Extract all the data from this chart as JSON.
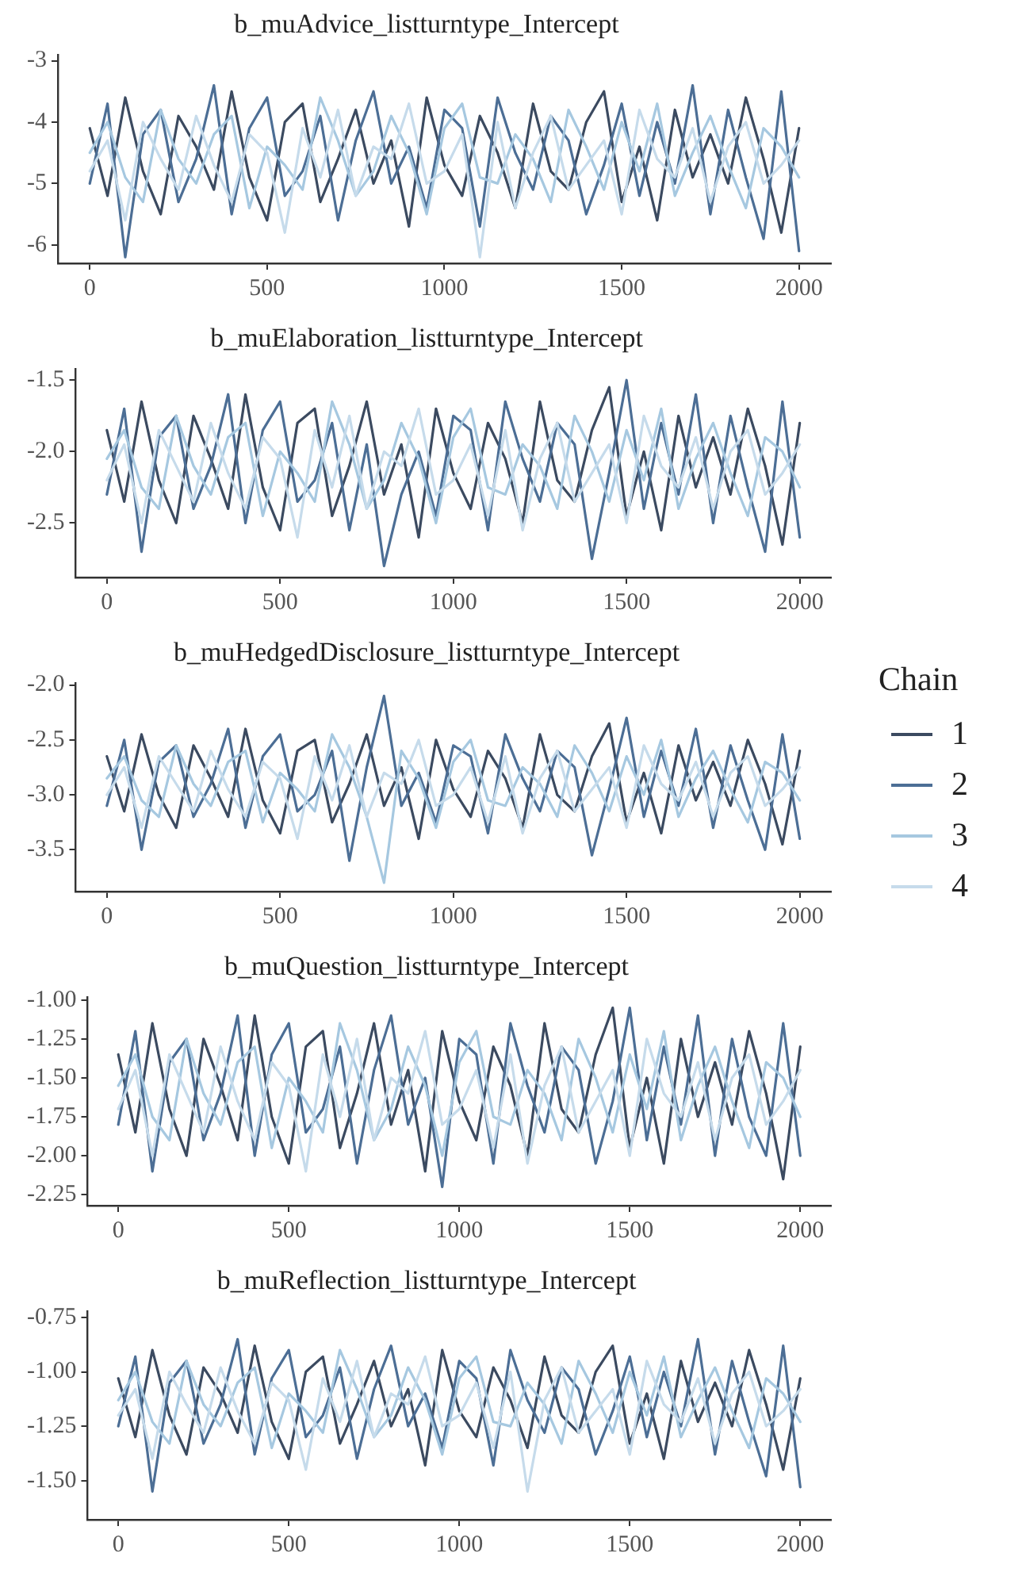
{
  "chart_data": [
    {
      "type": "line",
      "title": "b_muAdvice_listturntype_Intercept",
      "marker": "none",
      "line_style": "solid",
      "x": [
        0,
        50,
        100,
        150,
        200,
        250,
        300,
        350,
        400,
        450,
        500,
        550,
        600,
        650,
        700,
        750,
        800,
        850,
        900,
        950,
        1000,
        1050,
        1100,
        1150,
        1200,
        1250,
        1300,
        1350,
        1400,
        1450,
        1500,
        1550,
        1600,
        1650,
        1700,
        1750,
        1800,
        1850,
        1900,
        1950,
        2000
      ],
      "xlim": [
        -90,
        2090
      ],
      "xticks": [
        0,
        500,
        1000,
        1500,
        2000
      ],
      "ylim": [
        -6.3,
        -2.9
      ],
      "yticks": [
        -6,
        -5,
        -4,
        -3
      ],
      "series": [
        {
          "color": "#3b4a60",
          "values": [
            -4.1,
            -5.2,
            -3.6,
            -4.8,
            -5.5,
            -3.9,
            -4.4,
            -5.1,
            -3.5,
            -4.9,
            -5.6,
            -4.0,
            -3.7,
            -5.3,
            -4.6,
            -3.8,
            -5.0,
            -4.3,
            -5.7,
            -3.6,
            -4.7,
            -5.2,
            -3.9,
            -4.5,
            -5.4,
            -3.7,
            -4.8,
            -5.1,
            -4.0,
            -3.5,
            -5.3,
            -4.4,
            -5.6,
            -3.8,
            -4.9,
            -4.2,
            -5.0,
            -3.6,
            -4.6,
            -5.8,
            -4.1
          ]
        },
        {
          "color": "#4c6e95",
          "values": [
            -5.0,
            -3.7,
            -6.2,
            -4.2,
            -3.8,
            -5.3,
            -4.6,
            -3.4,
            -5.5,
            -4.1,
            -3.6,
            -5.2,
            -4.8,
            -3.9,
            -5.6,
            -4.3,
            -3.5,
            -5.0,
            -4.4,
            -5.4,
            -3.8,
            -4.1,
            -5.7,
            -3.6,
            -4.5,
            -5.1,
            -3.9,
            -4.3,
            -5.5,
            -4.7,
            -3.7,
            -5.2,
            -4.0,
            -5.0,
            -3.4,
            -5.5,
            -3.8,
            -4.9,
            -5.9,
            -3.5,
            -6.1
          ]
        },
        {
          "color": "#a6c8e0",
          "values": [
            -4.5,
            -4.0,
            -4.9,
            -5.3,
            -3.8,
            -4.6,
            -5.0,
            -4.2,
            -3.9,
            -5.4,
            -4.4,
            -4.7,
            -5.1,
            -3.6,
            -4.3,
            -5.2,
            -4.8,
            -3.9,
            -4.5,
            -5.5,
            -4.1,
            -3.7,
            -4.9,
            -5.0,
            -4.2,
            -4.6,
            -5.3,
            -3.8,
            -4.4,
            -5.1,
            -4.0,
            -4.8,
            -3.7,
            -5.2,
            -4.5,
            -3.9,
            -4.7,
            -5.4,
            -4.1,
            -4.4,
            -4.9
          ]
        },
        {
          "color": "#c6dbeb",
          "values": [
            -4.8,
            -4.3,
            -5.6,
            -4.0,
            -4.6,
            -5.1,
            -3.9,
            -4.7,
            -5.3,
            -4.2,
            -4.5,
            -5.8,
            -4.1,
            -4.9,
            -3.8,
            -5.2,
            -4.4,
            -4.6,
            -3.7,
            -5.0,
            -4.8,
            -4.2,
            -6.2,
            -4.0,
            -5.4,
            -4.5,
            -3.9,
            -5.1,
            -4.7,
            -4.3,
            -5.5,
            -3.8,
            -4.6,
            -4.9,
            -4.1,
            -5.3,
            -4.4,
            -4.0,
            -5.0,
            -4.7,
            -4.3
          ]
        }
      ]
    },
    {
      "type": "line",
      "title": "b_muElaboration_listturntype_Intercept",
      "marker": "none",
      "line_style": "solid",
      "x": [
        0,
        50,
        100,
        150,
        200,
        250,
        300,
        350,
        400,
        450,
        500,
        550,
        600,
        650,
        700,
        750,
        800,
        850,
        900,
        950,
        1000,
        1050,
        1100,
        1150,
        1200,
        1250,
        1300,
        1350,
        1400,
        1450,
        1500,
        1550,
        1600,
        1650,
        1700,
        1750,
        1800,
        1850,
        1900,
        1950,
        2000
      ],
      "xlim": [
        -90,
        2090
      ],
      "xticks": [
        0,
        500,
        1000,
        1500,
        2000
      ],
      "ylim": [
        -2.88,
        -1.42
      ],
      "yticks": [
        {
          "value": -2.5,
          "label": "-2.5"
        },
        {
          "value": -2.0,
          "label": "-2.0"
        },
        {
          "value": -1.5,
          "label": "-1.5"
        }
      ],
      "series": [
        {
          "color": "#3b4a60",
          "values": [
            -1.85,
            -2.35,
            -1.65,
            -2.2,
            -2.5,
            -1.75,
            -2.05,
            -2.4,
            -1.6,
            -2.25,
            -2.55,
            -1.8,
            -1.7,
            -2.45,
            -2.1,
            -1.65,
            -2.3,
            -1.95,
            -2.6,
            -1.7,
            -2.15,
            -2.4,
            -1.8,
            -2.05,
            -2.5,
            -1.65,
            -2.2,
            -2.35,
            -1.85,
            -1.55,
            -2.45,
            -2.0,
            -2.55,
            -1.75,
            -2.25,
            -1.9,
            -2.3,
            -1.7,
            -2.1,
            -2.65,
            -1.8
          ]
        },
        {
          "color": "#4c6e95",
          "values": [
            -2.3,
            -1.7,
            -2.7,
            -1.9,
            -1.75,
            -2.4,
            -2.1,
            -1.6,
            -2.5,
            -1.85,
            -1.65,
            -2.35,
            -2.2,
            -1.8,
            -2.55,
            -1.95,
            -2.8,
            -2.3,
            -2.0,
            -2.45,
            -1.75,
            -1.85,
            -2.55,
            -1.65,
            -2.05,
            -2.35,
            -1.8,
            -1.95,
            -2.75,
            -2.15,
            -1.5,
            -2.4,
            -1.8,
            -2.3,
            -1.6,
            -2.5,
            -1.75,
            -2.25,
            -2.7,
            -1.65,
            -2.6
          ]
        },
        {
          "color": "#a6c8e0",
          "values": [
            -2.05,
            -1.85,
            -2.25,
            -2.4,
            -1.75,
            -2.1,
            -2.3,
            -1.9,
            -1.8,
            -2.45,
            -2.0,
            -2.15,
            -2.35,
            -1.65,
            -1.95,
            -2.4,
            -2.2,
            -1.8,
            -2.05,
            -2.5,
            -1.9,
            -1.7,
            -2.25,
            -2.3,
            -1.95,
            -2.1,
            -2.4,
            -1.75,
            -2.0,
            -2.35,
            -1.85,
            -2.2,
            -1.7,
            -2.4,
            -2.05,
            -1.8,
            -2.15,
            -2.45,
            -1.9,
            -2.0,
            -2.25
          ]
        },
        {
          "color": "#c6dbeb",
          "values": [
            -2.2,
            -1.95,
            -2.5,
            -1.85,
            -2.1,
            -2.35,
            -1.8,
            -2.15,
            -2.4,
            -1.9,
            -2.05,
            -2.6,
            -1.85,
            -2.25,
            -1.75,
            -2.4,
            -2.0,
            -2.1,
            -1.7,
            -2.3,
            -2.2,
            -1.95,
            -2.45,
            -1.85,
            -2.55,
            -2.05,
            -1.8,
            -2.35,
            -2.15,
            -1.95,
            -2.5,
            -1.75,
            -2.1,
            -2.25,
            -1.9,
            -2.4,
            -2.0,
            -1.85,
            -2.3,
            -2.15,
            -1.95
          ]
        }
      ]
    },
    {
      "type": "line",
      "title": "b_muHedgedDisclosure_listturntype_Intercept",
      "marker": "none",
      "line_style": "solid",
      "legend": "right",
      "legend_title": "Chain",
      "x": [
        0,
        50,
        100,
        150,
        200,
        250,
        300,
        350,
        400,
        450,
        500,
        550,
        600,
        650,
        700,
        750,
        800,
        850,
        900,
        950,
        1000,
        1050,
        1100,
        1150,
        1200,
        1250,
        1300,
        1350,
        1400,
        1450,
        1500,
        1550,
        1600,
        1650,
        1700,
        1750,
        1800,
        1850,
        1900,
        1950,
        2000
      ],
      "xlim": [
        -90,
        2090
      ],
      "xticks": [
        0,
        500,
        1000,
        1500,
        2000
      ],
      "ylim": [
        -3.88,
        -1.98
      ],
      "yticks": [
        {
          "value": -3.5,
          "label": "-3.5"
        },
        {
          "value": -3.0,
          "label": "-3.0"
        },
        {
          "value": -2.5,
          "label": "-2.5"
        },
        {
          "value": -2.0,
          "label": "-2.0"
        }
      ],
      "series": [
        {
          "name": "1",
          "color": "#3b4a60",
          "values": [
            -2.65,
            -3.15,
            -2.45,
            -3.0,
            -3.3,
            -2.55,
            -2.85,
            -3.2,
            -2.4,
            -3.05,
            -3.35,
            -2.6,
            -2.5,
            -3.25,
            -2.9,
            -2.45,
            -3.1,
            -2.75,
            -3.4,
            -2.5,
            -2.95,
            -3.2,
            -2.6,
            -2.85,
            -3.3,
            -2.45,
            -3.0,
            -3.15,
            -2.65,
            -2.35,
            -3.25,
            -2.8,
            -3.35,
            -2.55,
            -3.05,
            -2.7,
            -3.1,
            -2.5,
            -2.9,
            -3.45,
            -2.6
          ]
        },
        {
          "name": "2",
          "color": "#4c6e95",
          "values": [
            -3.1,
            -2.5,
            -3.5,
            -2.7,
            -2.55,
            -3.2,
            -2.9,
            -2.4,
            -3.3,
            -2.65,
            -2.45,
            -3.15,
            -3.0,
            -2.6,
            -3.6,
            -2.75,
            -2.1,
            -3.1,
            -2.8,
            -3.25,
            -2.55,
            -2.65,
            -3.35,
            -2.45,
            -2.85,
            -3.15,
            -2.6,
            -2.75,
            -3.55,
            -2.95,
            -2.3,
            -3.2,
            -2.6,
            -3.1,
            -2.4,
            -3.3,
            -2.55,
            -3.05,
            -3.5,
            -2.45,
            -3.4
          ]
        },
        {
          "name": "3",
          "color": "#a6c8e0",
          "values": [
            -2.85,
            -2.65,
            -3.05,
            -3.2,
            -2.55,
            -2.9,
            -3.1,
            -2.7,
            -2.6,
            -3.25,
            -2.8,
            -2.95,
            -3.15,
            -2.45,
            -2.75,
            -3.2,
            -3.8,
            -2.6,
            -2.85,
            -3.3,
            -2.7,
            -2.5,
            -3.05,
            -3.1,
            -2.75,
            -2.9,
            -3.2,
            -2.55,
            -2.8,
            -3.15,
            -2.65,
            -3.0,
            -2.5,
            -3.2,
            -2.85,
            -2.6,
            -2.95,
            -3.25,
            -2.7,
            -2.8,
            -3.05
          ]
        },
        {
          "name": "4",
          "color": "#c6dbeb",
          "values": [
            -3.0,
            -2.75,
            -3.3,
            -2.65,
            -2.9,
            -3.15,
            -2.6,
            -2.95,
            -3.2,
            -2.7,
            -2.85,
            -3.4,
            -2.65,
            -3.05,
            -2.55,
            -3.2,
            -2.8,
            -2.9,
            -2.5,
            -3.1,
            -3.0,
            -2.75,
            -3.25,
            -2.65,
            -3.35,
            -2.85,
            -2.6,
            -3.15,
            -2.95,
            -2.75,
            -3.3,
            -2.55,
            -2.9,
            -3.05,
            -2.7,
            -3.2,
            -2.8,
            -2.65,
            -3.1,
            -2.95,
            -2.75
          ]
        }
      ]
    },
    {
      "type": "line",
      "title": "b_muQuestion_listturntype_Intercept",
      "marker": "none",
      "line_style": "solid",
      "x": [
        0,
        50,
        100,
        150,
        200,
        250,
        300,
        350,
        400,
        450,
        500,
        550,
        600,
        650,
        700,
        750,
        800,
        850,
        900,
        950,
        1000,
        1050,
        1100,
        1150,
        1200,
        1250,
        1300,
        1350,
        1400,
        1450,
        1500,
        1550,
        1600,
        1650,
        1700,
        1750,
        1800,
        1850,
        1900,
        1950,
        2000
      ],
      "xlim": [
        -90,
        2090
      ],
      "xticks": [
        0,
        500,
        1000,
        1500,
        2000
      ],
      "ylim": [
        -2.32,
        -0.98
      ],
      "yticks": [
        -2.25,
        {
          "value": -2.0,
          "label": "-2.00"
        },
        -1.75,
        {
          "value": -1.5,
          "label": "-1.50"
        },
        -1.25,
        {
          "value": -1.0,
          "label": "-1.00"
        }
      ],
      "series": [
        {
          "color": "#3b4a60",
          "values": [
            -1.35,
            -1.85,
            -1.15,
            -1.7,
            -2.0,
            -1.25,
            -1.55,
            -1.9,
            -1.1,
            -1.75,
            -2.05,
            -1.3,
            -1.2,
            -1.95,
            -1.6,
            -1.15,
            -1.8,
            -1.45,
            -2.1,
            -1.2,
            -1.65,
            -1.9,
            -1.3,
            -1.55,
            -2.0,
            -1.15,
            -1.7,
            -1.85,
            -1.35,
            -1.05,
            -1.95,
            -1.5,
            -2.05,
            -1.25,
            -1.75,
            -1.4,
            -1.8,
            -1.2,
            -1.6,
            -2.15,
            -1.3
          ]
        },
        {
          "color": "#4c6e95",
          "values": [
            -1.8,
            -1.2,
            -2.1,
            -1.4,
            -1.25,
            -1.9,
            -1.6,
            -1.1,
            -2.0,
            -1.35,
            -1.15,
            -1.85,
            -1.7,
            -1.3,
            -2.05,
            -1.45,
            -1.1,
            -1.8,
            -1.5,
            -2.2,
            -1.25,
            -1.35,
            -2.05,
            -1.15,
            -1.55,
            -1.85,
            -1.3,
            -1.45,
            -2.05,
            -1.65,
            -1.05,
            -1.9,
            -1.3,
            -1.8,
            -1.1,
            -2.0,
            -1.25,
            -1.75,
            -2.0,
            -1.15,
            -2.0
          ]
        },
        {
          "color": "#a6c8e0",
          "values": [
            -1.55,
            -1.35,
            -1.75,
            -1.9,
            -1.25,
            -1.6,
            -1.8,
            -1.4,
            -1.3,
            -1.95,
            -1.5,
            -1.65,
            -1.85,
            -1.15,
            -1.45,
            -1.9,
            -1.7,
            -1.3,
            -1.55,
            -2.0,
            -1.4,
            -1.2,
            -1.75,
            -1.8,
            -1.45,
            -1.6,
            -1.9,
            -1.25,
            -1.5,
            -1.85,
            -1.35,
            -1.7,
            -1.2,
            -1.9,
            -1.55,
            -1.3,
            -1.65,
            -1.95,
            -1.4,
            -1.5,
            -1.75
          ]
        },
        {
          "color": "#c6dbeb",
          "values": [
            -1.7,
            -1.45,
            -2.0,
            -1.35,
            -1.6,
            -1.85,
            -1.3,
            -1.65,
            -1.9,
            -1.4,
            -1.55,
            -2.1,
            -1.35,
            -1.75,
            -1.25,
            -1.9,
            -1.5,
            -1.6,
            -1.2,
            -1.8,
            -1.7,
            -1.45,
            -1.95,
            -1.35,
            -2.05,
            -1.55,
            -1.3,
            -1.85,
            -1.65,
            -1.45,
            -2.0,
            -1.25,
            -1.6,
            -1.75,
            -1.4,
            -1.9,
            -1.5,
            -1.35,
            -1.8,
            -1.65,
            -1.45
          ]
        }
      ]
    },
    {
      "type": "line",
      "title": "b_muReflection_listturntype_Intercept",
      "marker": "none",
      "line_style": "solid",
      "x": [
        0,
        50,
        100,
        150,
        200,
        250,
        300,
        350,
        400,
        450,
        500,
        550,
        600,
        650,
        700,
        750,
        800,
        850,
        900,
        950,
        1000,
        1050,
        1100,
        1150,
        1200,
        1250,
        1300,
        1350,
        1400,
        1450,
        1500,
        1550,
        1600,
        1650,
        1700,
        1750,
        1800,
        1850,
        1900,
        1950,
        2000
      ],
      "xlim": [
        -90,
        2090
      ],
      "xticks": [
        0,
        500,
        1000,
        1500,
        2000
      ],
      "ylim": [
        -1.68,
        -0.72
      ],
      "yticks": [
        {
          "value": -1.5,
          "label": "-1.50"
        },
        -1.25,
        {
          "value": -1.0,
          "label": "-1.00"
        },
        -0.75
      ],
      "series": [
        {
          "color": "#3b4a60",
          "values": [
            -1.03,
            -1.3,
            -0.9,
            -1.2,
            -1.38,
            -0.98,
            -1.1,
            -1.28,
            -0.88,
            -1.23,
            -1.4,
            -1.0,
            -0.93,
            -1.33,
            -1.15,
            -0.95,
            -1.25,
            -1.08,
            -1.43,
            -0.9,
            -1.18,
            -1.3,
            -0.98,
            -1.13,
            -1.35,
            -0.93,
            -1.2,
            -1.28,
            -1.0,
            -0.88,
            -1.33,
            -1.1,
            -1.4,
            -0.95,
            -1.23,
            -1.05,
            -1.25,
            -0.9,
            -1.15,
            -1.45,
            -1.03
          ]
        },
        {
          "color": "#4c6e95",
          "values": [
            -1.25,
            -0.93,
            -1.55,
            -1.05,
            -0.95,
            -1.33,
            -1.15,
            -0.85,
            -1.38,
            -1.03,
            -0.9,
            -1.3,
            -1.2,
            -0.98,
            -1.4,
            -1.08,
            -0.88,
            -1.25,
            -1.1,
            -1.35,
            -0.95,
            -1.03,
            -1.43,
            -0.9,
            -1.13,
            -1.28,
            -0.98,
            -1.08,
            -1.38,
            -1.18,
            -0.93,
            -1.3,
            -1.0,
            -1.25,
            -0.85,
            -1.38,
            -0.95,
            -1.23,
            -1.48,
            -0.88,
            -1.53
          ]
        },
        {
          "color": "#a6c8e0",
          "values": [
            -1.13,
            -1.0,
            -1.23,
            -1.33,
            -0.95,
            -1.15,
            -1.25,
            -1.05,
            -0.98,
            -1.35,
            -1.1,
            -1.18,
            -1.28,
            -0.9,
            -1.08,
            -1.3,
            -1.2,
            -0.98,
            -1.13,
            -1.38,
            -1.03,
            -0.93,
            -1.23,
            -1.25,
            -1.05,
            -1.15,
            -1.33,
            -0.95,
            -1.1,
            -1.28,
            -1.0,
            -1.2,
            -0.93,
            -1.3,
            -1.13,
            -0.98,
            -1.18,
            -1.35,
            -1.03,
            -1.1,
            -1.23
          ]
        },
        {
          "color": "#c6dbeb",
          "values": [
            -1.2,
            -1.08,
            -1.4,
            -1.0,
            -1.15,
            -1.28,
            -0.98,
            -1.18,
            -1.33,
            -1.05,
            -1.13,
            -1.45,
            -1.03,
            -1.23,
            -0.95,
            -1.3,
            -1.1,
            -1.15,
            -0.93,
            -1.25,
            -1.2,
            -1.05,
            -1.35,
            -1.0,
            -1.55,
            -1.13,
            -0.98,
            -1.28,
            -1.18,
            -1.08,
            -1.38,
            -0.95,
            -1.15,
            -1.23,
            -1.03,
            -1.33,
            -1.1,
            -1.0,
            -1.25,
            -1.18,
            -1.08
          ]
        }
      ]
    }
  ]
}
